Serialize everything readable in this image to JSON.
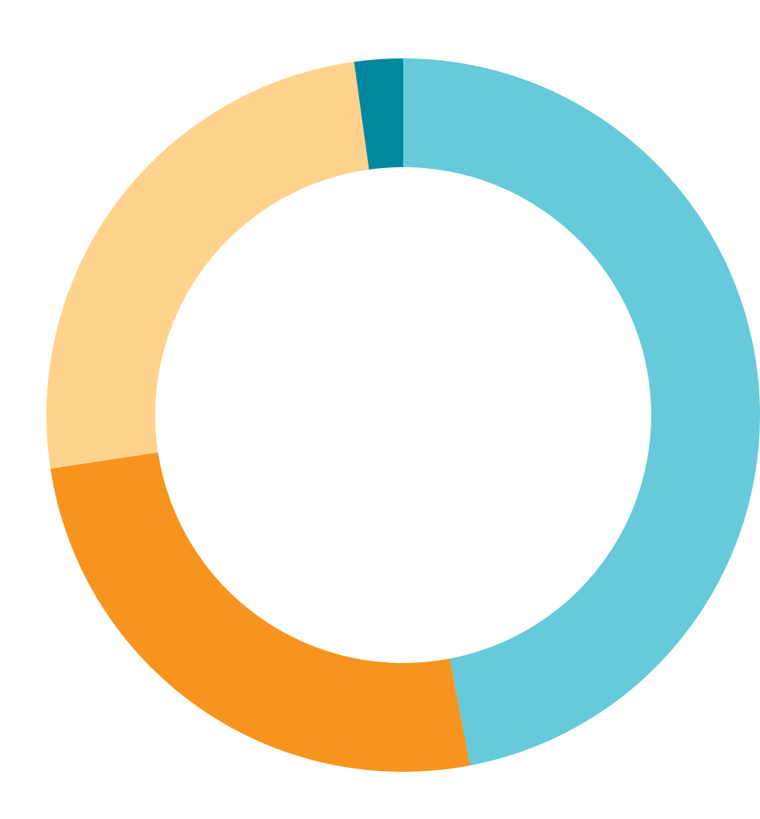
{
  "chart_data": {
    "type": "pie",
    "variant": "donut",
    "title": "",
    "legend": "none",
    "categories": [
      "",
      "",
      "",
      ""
    ],
    "values": [
      47.0,
      25.6,
      25.2,
      2.2
    ],
    "colors": [
      "#66CADA",
      "#F7941E",
      "#FFD38E",
      "#00899E"
    ],
    "start_angle": "12 o'clock",
    "direction": "clockwise"
  }
}
